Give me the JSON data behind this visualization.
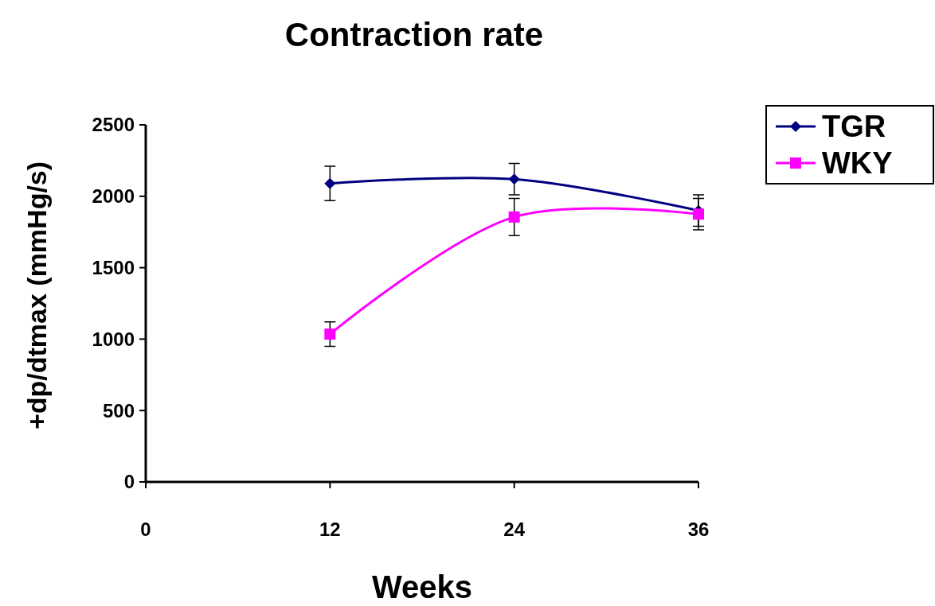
{
  "chart_data": {
    "type": "line",
    "title": "Contraction rate",
    "xlabel": "Weeks",
    "ylabel": "+dp/dtmax (mmHg/s)",
    "x": [
      12,
      24,
      36
    ],
    "series": [
      {
        "name": "TGR",
        "color": "#000080",
        "marker": "diamond",
        "values": [
          2090,
          2120,
          1900
        ],
        "errors": [
          120,
          110,
          110
        ]
      },
      {
        "name": "WKY",
        "color": "#ff00ff",
        "marker": "square",
        "values": [
          1035,
          1855,
          1875
        ],
        "errors": [
          85,
          130,
          110
        ]
      }
    ],
    "xlim": [
      0,
      36
    ],
    "xticks": [
      0,
      12,
      24,
      36
    ],
    "ylim": [
      0,
      2500
    ],
    "yticks": [
      0,
      500,
      1000,
      1500,
      2000,
      2500
    ],
    "grid": false,
    "legend": "top right"
  }
}
